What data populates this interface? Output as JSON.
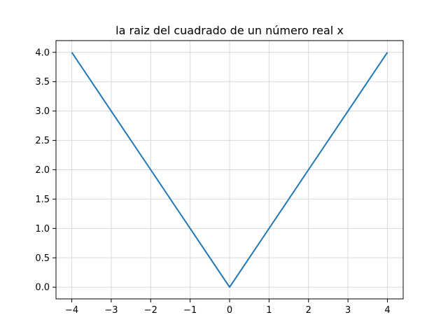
{
  "chart_data": {
    "type": "line",
    "title": "la raiz del cuadrado de un número real x",
    "xlabel": "",
    "ylabel": "",
    "xlim": [
      -4.4,
      4.4
    ],
    "ylim": [
      -0.2,
      4.2
    ],
    "xticks": [
      -4,
      -3,
      -2,
      -1,
      0,
      1,
      2,
      3,
      4
    ],
    "xtick_labels": [
      "−4",
      "−3",
      "−2",
      "−1",
      "0",
      "1",
      "2",
      "3",
      "4"
    ],
    "yticks": [
      0.0,
      0.5,
      1.0,
      1.5,
      2.0,
      2.5,
      3.0,
      3.5,
      4.0
    ],
    "ytick_labels": [
      "0.0",
      "0.5",
      "1.0",
      "1.5",
      "2.0",
      "2.5",
      "3.0",
      "3.5",
      "4.0"
    ],
    "grid": true,
    "series": [
      {
        "color": "#1f77b4",
        "x": [
          -4,
          -3,
          -2,
          -1,
          0,
          1,
          2,
          3,
          4
        ],
        "y": [
          4,
          3,
          2,
          1,
          0,
          1,
          2,
          3,
          4
        ]
      }
    ]
  }
}
